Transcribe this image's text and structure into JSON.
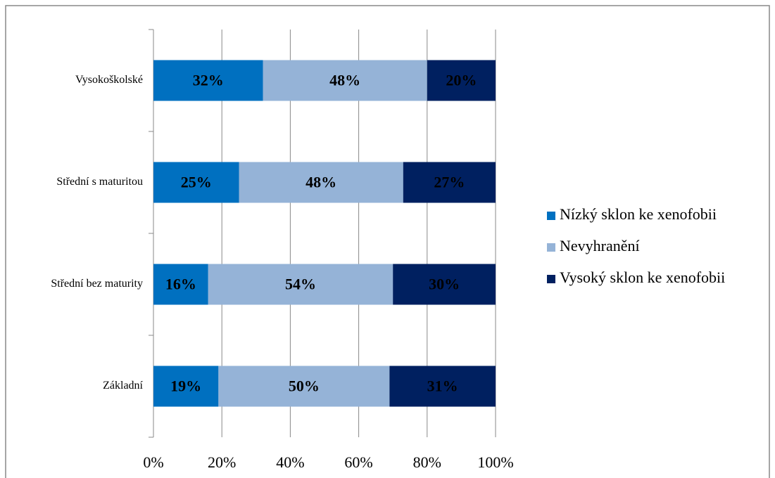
{
  "chart_data": {
    "type": "stacked_barh",
    "categories": [
      "Vysokoškolské",
      "Střední s maturitou",
      "Střední bez maturity",
      "Základní"
    ],
    "series": [
      {
        "name": "Nízký sklon ke xenofobii",
        "color": "#0070c0",
        "values": [
          32,
          25,
          16,
          19
        ],
        "value_labels": [
          "32%",
          "25%",
          "16%",
          "19%"
        ]
      },
      {
        "name": "Nevyhranění",
        "color": "#95b3d7",
        "values": [
          48,
          48,
          54,
          50
        ],
        "value_labels": [
          "48%",
          "48%",
          "54%",
          "50%"
        ]
      },
      {
        "name": "Vysoký sklon ke xenofobii",
        "color": "#002060",
        "values": [
          20,
          27,
          30,
          31
        ],
        "value_labels": [
          "20%",
          "27%",
          "30%",
          "31%"
        ]
      }
    ],
    "xlim": [
      0,
      100
    ],
    "xticks": [
      {
        "value": 0,
        "label": "0%"
      },
      {
        "value": 20,
        "label": "20%"
      },
      {
        "value": 40,
        "label": "40%"
      },
      {
        "value": 60,
        "label": "60%"
      },
      {
        "value": 80,
        "label": "80%"
      },
      {
        "value": 100,
        "label": "100%"
      }
    ],
    "grid": true,
    "legend": "right"
  }
}
